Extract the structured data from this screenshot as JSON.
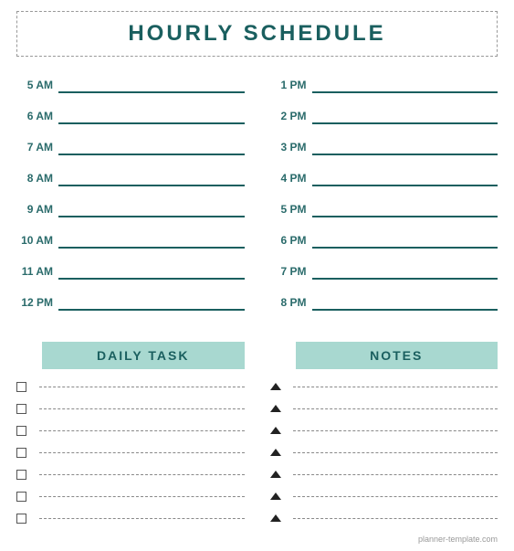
{
  "title": "HOURLY SCHEDULE",
  "colors": {
    "primary": "#1a5f5f",
    "accent_bg": "#a8d8d0",
    "text_muted": "#999",
    "border_dash": "#888",
    "checkbox_border": "#555",
    "arrow_fill": "#222",
    "background": "#ffffff"
  },
  "schedule": {
    "left": [
      {
        "label": "5 AM"
      },
      {
        "label": "6 AM"
      },
      {
        "label": "7 AM"
      },
      {
        "label": "8 AM"
      },
      {
        "label": "9 AM"
      },
      {
        "label": "10 AM"
      },
      {
        "label": "11 AM"
      },
      {
        "label": "12 PM"
      }
    ],
    "right": [
      {
        "label": "1 PM"
      },
      {
        "label": "2 PM"
      },
      {
        "label": "3 PM"
      },
      {
        "label": "4 PM"
      },
      {
        "label": "5 PM"
      },
      {
        "label": "6 PM"
      },
      {
        "label": "7 PM"
      },
      {
        "label": "8 PM"
      }
    ]
  },
  "sections": {
    "daily_task": {
      "header": "DAILY TASK",
      "row_count": 7
    },
    "notes": {
      "header": "NOTES",
      "row_count": 7
    }
  },
  "footer": "planner-template.com",
  "typography": {
    "title_fontsize": 24,
    "title_letterspacing": 3,
    "time_label_fontsize": 12,
    "section_header_fontsize": 14,
    "footer_fontsize": 9
  }
}
